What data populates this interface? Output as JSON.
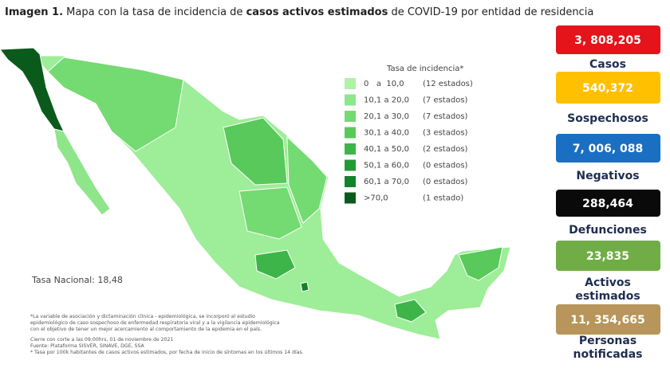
{
  "title": {
    "parts": [
      {
        "text": "Imagen 1.",
        "bold": true
      },
      {
        "text": " Mapa con la tasa de incidencia de ",
        "bold": false
      },
      {
        "text": "casos activos estimados",
        "bold": true
      },
      {
        "text": " de COVID-19 por entidad de residencia",
        "bold": false
      }
    ]
  },
  "legend": {
    "title": "Tasa de incidencia*",
    "items": [
      {
        "range": "0   a  10,0",
        "count": "(12 estados)",
        "color": "#aef3a6"
      },
      {
        "range": "10,1 a 20,0",
        "count": "(7 estados)",
        "color": "#8fe58a"
      },
      {
        "range": "20,1 a 30,0",
        "count": "(7 estados)",
        "color": "#74da72"
      },
      {
        "range": "30,1 a 40,0",
        "count": "(3 estados)",
        "color": "#58c95a"
      },
      {
        "range": "40,1 a 50,0",
        "count": "(2 estados)",
        "color": "#3db548"
      },
      {
        "range": "50,1 a 60,0",
        "count": "(0 estados)",
        "color": "#229a36"
      },
      {
        "range": "60,1 a 70,0",
        "count": "(0 estados)",
        "color": "#14822a"
      },
      {
        "range": ">70,0",
        "count": "(1 estado)",
        "color": "#0a5a1b"
      }
    ]
  },
  "national_rate": "Tasa Nacional: 18,48",
  "notes": [
    "*La variable de asociación y dictaminación clínica - epidemiológica, se incorporó al estudio",
    "epidemiológico de caso sospechoso de enfermedad respiratoria viral y a la vigilancia epidemiológica",
    "con el objetivo de tener un mejor acercamiento al comportamiento de la epidemia en el país.",
    "Cierre con corte a las 09:00hrs, 01 de noviembre de 2021",
    "Fuente: Plataforma SISVER, SINAVE, DGE, SSA",
    "* Tasa por 100k habitantes de casos activos estimados, por fecha de inicio de síntomas en los últimos 14 días."
  ],
  "stats": [
    {
      "value": "3, 808,205",
      "label": [
        "Casos"
      ],
      "color": "#e5141b",
      "text_color": "#ffffff"
    },
    {
      "value": "540,372",
      "label": [
        "Sospechosos"
      ],
      "color": "#ffc000",
      "text_color": "#ffffff"
    },
    {
      "value": "7, 006, 088",
      "label": [
        "Negativos"
      ],
      "color": "#1b6fc2",
      "text_color": "#ffffff"
    },
    {
      "value": "288,464",
      "label": [
        "Defunciones"
      ],
      "color": "#0a0a0a",
      "text_color": "#ffffff"
    },
    {
      "value": "23,835",
      "label": [
        "Activos",
        "estimados"
      ],
      "color": "#70ad47",
      "text_color": "#ffffff"
    },
    {
      "value": "11, 354,665",
      "label": [
        "Personas",
        "notificadas"
      ],
      "color": "#b8955a",
      "text_color": "#ffffff"
    }
  ]
}
